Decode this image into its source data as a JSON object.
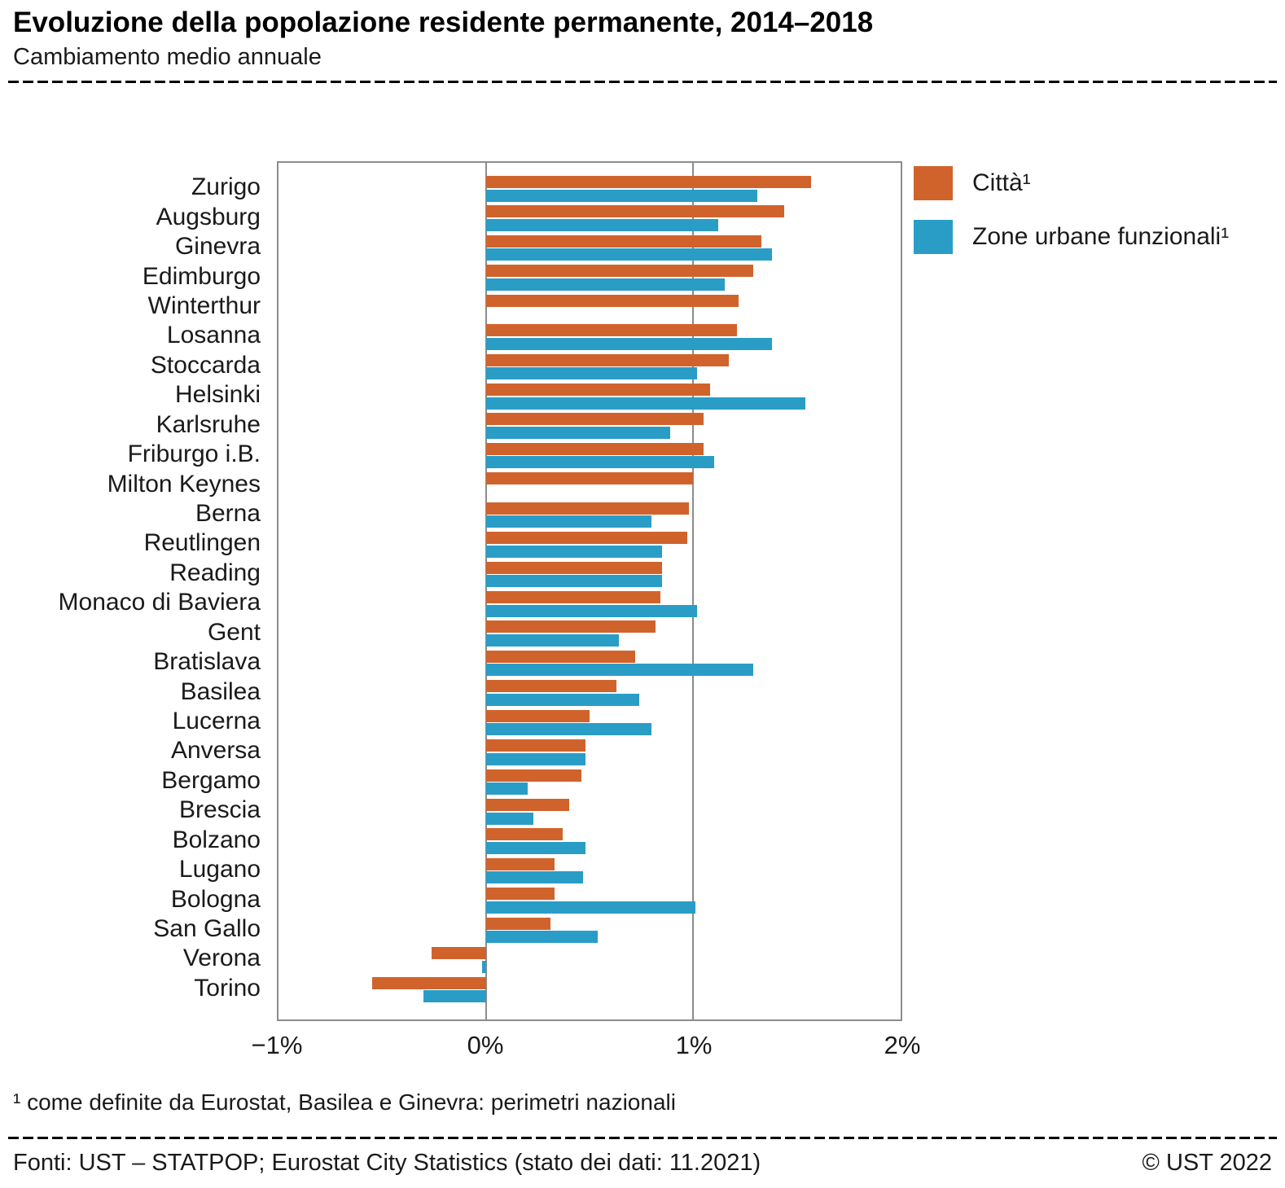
{
  "header": {
    "title": "Evoluzione della popolazione residente permanente, 2014–2018",
    "subtitle": "Cambiamento medio annuale"
  },
  "footnote": "¹   come definite da Eurostat, Basilea e Ginevra: perimetri nazionali",
  "footer": {
    "source": "Fonti: UST – STATPOP; Eurostat City Statistics (stato dei dati: 11.2021)",
    "copyright": "© UST 2022"
  },
  "colors": {
    "citta": "#d0632c",
    "zone_urbane": "#2a9dc7",
    "grid": "#8c8c8c"
  },
  "chart_data": {
    "type": "bar",
    "orientation": "horizontal",
    "title": "Evoluzione della popolazione residente permanente, 2014–2018",
    "subtitle": "Cambiamento medio annuale",
    "xlim": [
      -1,
      2
    ],
    "x_tick_values": [
      -1,
      0,
      1,
      2
    ],
    "x_ticks": [
      "−1%",
      "0%",
      "1%",
      "2%"
    ],
    "grid": true,
    "legend_position": "top-right",
    "categories": [
      "Zurigo",
      "Augsburg",
      "Ginevra",
      "Edimburgo",
      "Winterthur",
      "Losanna",
      "Stoccarda",
      "Helsinki",
      "Karlsruhe",
      "Friburgo i.B.",
      "Milton Keynes",
      "Berna",
      "Reutlingen",
      "Reading",
      "Monaco di Baviera",
      "Gent",
      "Bratislava",
      "Basilea",
      "Lucerna",
      "Anversa",
      "Bergamo",
      "Brescia",
      "Bolzano",
      "Lugano",
      "Bologna",
      "San Gallo",
      "Verona",
      "Torino"
    ],
    "series": [
      {
        "name": "Città¹",
        "color": "#d0632c",
        "values": [
          1.57,
          1.44,
          1.33,
          1.29,
          1.22,
          1.21,
          1.17,
          1.08,
          1.05,
          1.05,
          1.0,
          0.98,
          0.97,
          0.85,
          0.84,
          0.82,
          0.72,
          0.63,
          0.5,
          0.48,
          0.46,
          0.4,
          0.37,
          0.33,
          0.33,
          0.31,
          -0.26,
          -0.55
        ]
      },
      {
        "name": "Zone urbane funzionali¹",
        "color": "#2a9dc7",
        "values": [
          1.31,
          1.12,
          1.38,
          1.15,
          null,
          1.38,
          1.02,
          1.54,
          0.89,
          1.1,
          null,
          0.8,
          0.85,
          0.85,
          1.02,
          0.64,
          1.29,
          0.74,
          0.8,
          0.48,
          0.2,
          0.23,
          0.48,
          0.47,
          1.01,
          0.54,
          -0.02,
          -0.3
        ]
      }
    ]
  }
}
